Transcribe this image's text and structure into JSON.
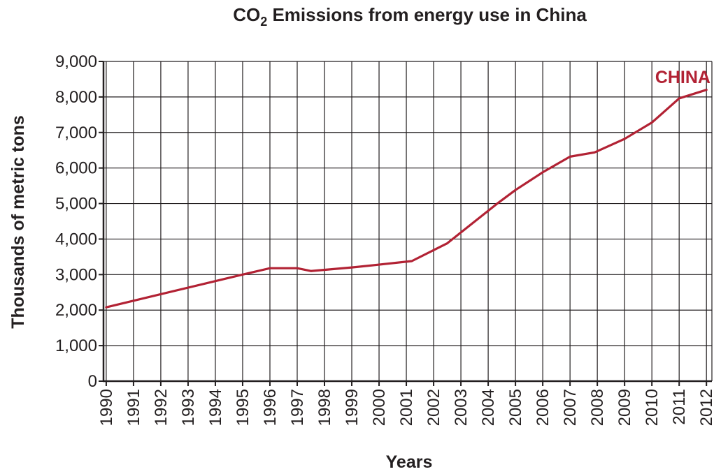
{
  "chart_data": {
    "type": "line",
    "title": {
      "prefix": "CO",
      "subscript": "2",
      "suffix": " Emissions from energy use in China"
    },
    "xlabel": "Years",
    "ylabel": "Thousands of metric tons",
    "x_ticks": [
      "1990",
      "1991",
      "1992",
      "1993",
      "1994",
      "1995",
      "1996",
      "1997",
      "1998",
      "1999",
      "2000",
      "2001",
      "2002",
      "2003",
      "2004",
      "2005",
      "2006",
      "2007",
      "2008",
      "2009",
      "2010",
      "2011",
      "2012"
    ],
    "y_ticks": [
      "0",
      "1,000",
      "2,000",
      "3,000",
      "4,000",
      "5,000",
      "6,000",
      "7,000",
      "8,000",
      "9,000"
    ],
    "xlim": [
      1989.9,
      2012.2
    ],
    "ylim": [
      0,
      9000
    ],
    "grid": true,
    "series": [
      {
        "name": "CHINA",
        "color": "#b22234",
        "points": [
          {
            "x": 1990,
            "y": 2080
          },
          {
            "x": 1995,
            "y": 3000
          },
          {
            "x": 1996,
            "y": 3180
          },
          {
            "x": 1997,
            "y": 3180
          },
          {
            "x": 1997.5,
            "y": 3100
          },
          {
            "x": 1999,
            "y": 3200
          },
          {
            "x": 2000,
            "y": 3280
          },
          {
            "x": 2001.2,
            "y": 3380
          },
          {
            "x": 2002.5,
            "y": 3880
          },
          {
            "x": 2004.3,
            "y": 4980
          },
          {
            "x": 2005,
            "y": 5380
          },
          {
            "x": 2006,
            "y": 5880
          },
          {
            "x": 2007,
            "y": 6320
          },
          {
            "x": 2007.9,
            "y": 6440
          },
          {
            "x": 2009,
            "y": 6820
          },
          {
            "x": 2010,
            "y": 7280
          },
          {
            "x": 2011,
            "y": 7960
          },
          {
            "x": 2012,
            "y": 8200
          }
        ]
      }
    ]
  }
}
